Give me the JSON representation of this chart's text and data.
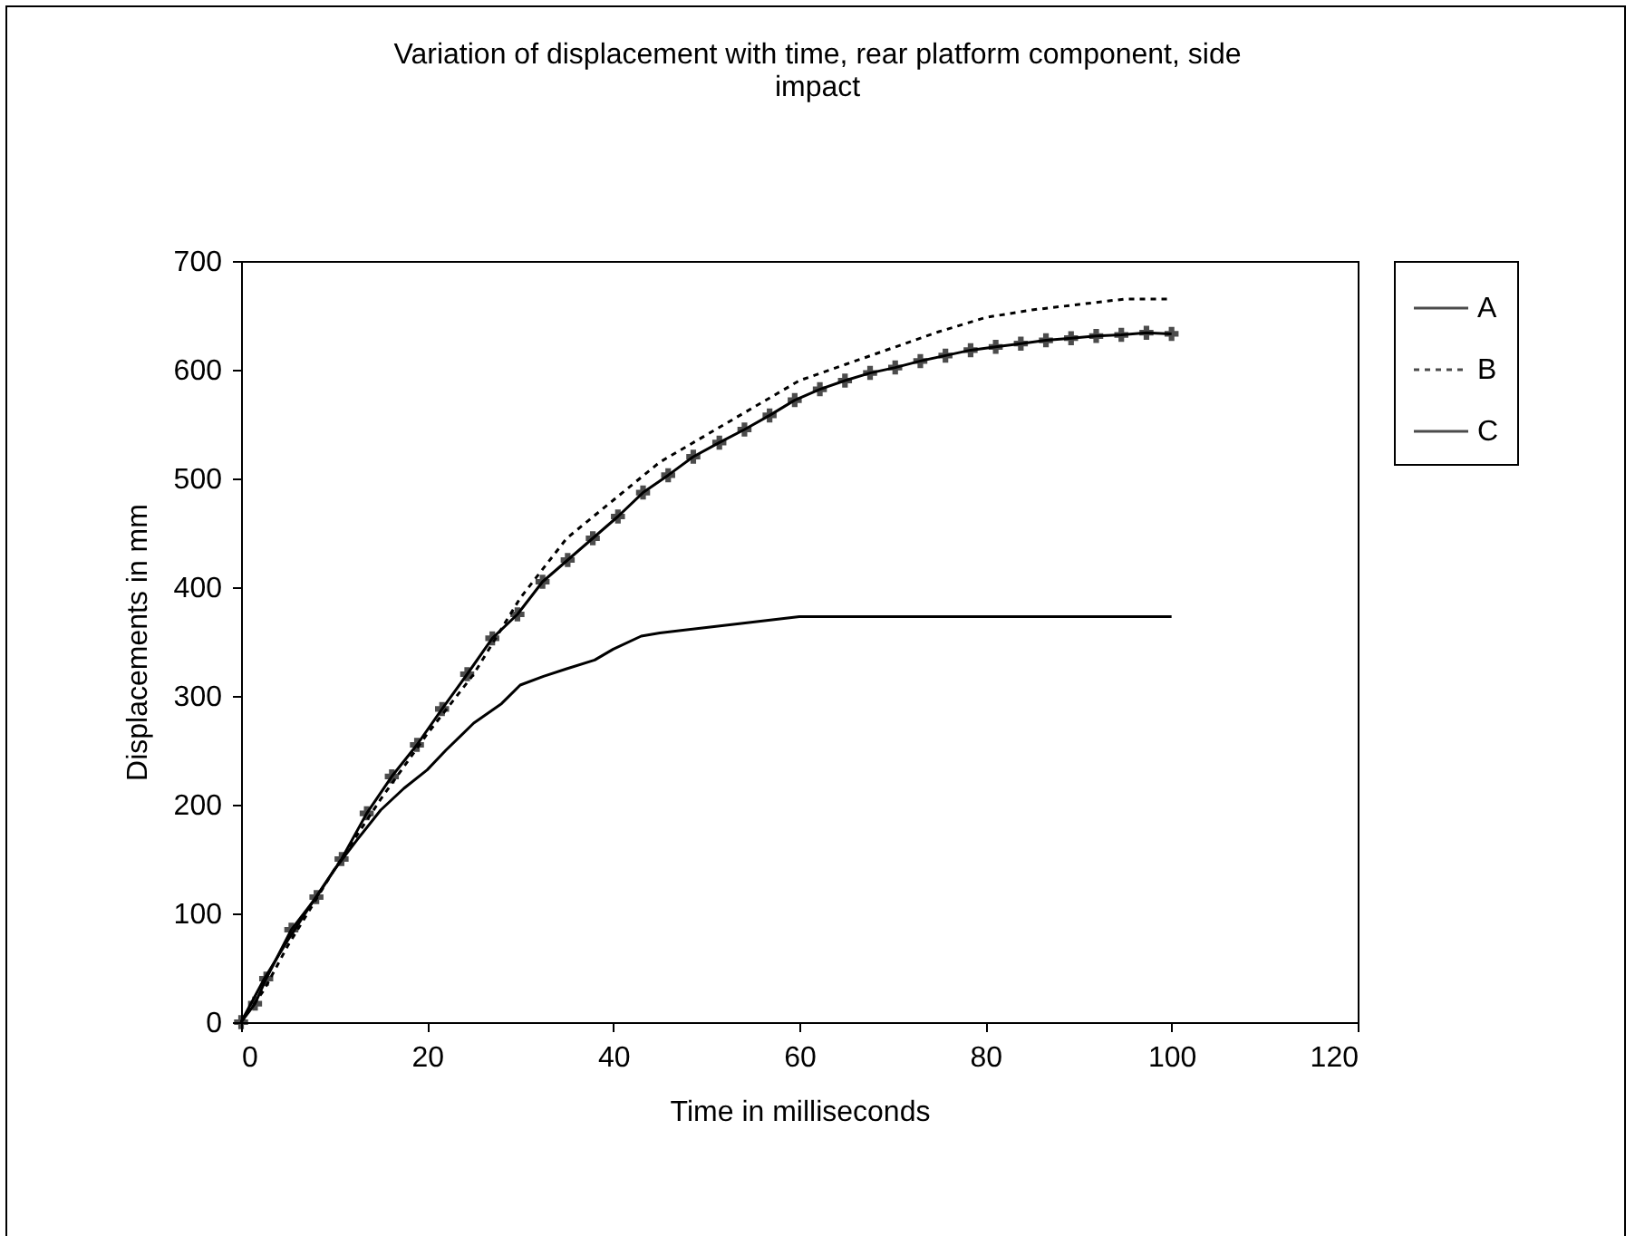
{
  "chart_data": {
    "type": "line",
    "title": "Variation of displacement with time, rear platform component, side impact",
    "xlabel": "Time in milliseconds",
    "ylabel": "Displacements in mm",
    "xlim": [
      0,
      120
    ],
    "xticks": [
      0,
      20,
      40,
      60,
      80,
      100,
      120
    ],
    "ylim": [
      0,
      700
    ],
    "yticks": [
      0,
      100,
      200,
      300,
      400,
      500,
      600,
      700
    ],
    "grid": false,
    "legend": "right",
    "series": [
      {
        "name": "A",
        "color": "#000000",
        "line_style": "solid",
        "marker": "none",
        "x": [
          0,
          2.5,
          5,
          7.5,
          10,
          12.5,
          15,
          17.5,
          20,
          22,
          25,
          28,
          30,
          32.5,
          35,
          38,
          40,
          43,
          45,
          50,
          55,
          60,
          100
        ],
        "values": [
          0,
          40,
          75,
          108,
          140,
          168,
          195,
          215,
          232,
          250,
          275,
          293,
          310,
          318,
          325,
          333,
          343,
          355,
          358,
          363,
          368,
          373,
          373
        ]
      },
      {
        "name": "B",
        "color": "#000000",
        "line_style": "dotted",
        "marker": "none",
        "x": [
          0,
          2.5,
          5,
          7.5,
          10,
          15,
          20,
          25,
          30,
          35,
          40,
          45,
          50,
          55,
          60,
          65,
          70,
          75,
          80,
          85,
          90,
          95,
          100
        ],
        "values": [
          0,
          30,
          70,
          105,
          140,
          205,
          265,
          320,
          390,
          445,
          480,
          515,
          540,
          565,
          590,
          605,
          620,
          635,
          648,
          655,
          660,
          665,
          665
        ]
      },
      {
        "name": "C",
        "color": "#000000",
        "line_style": "solid",
        "marker": "cross",
        "x": [
          0,
          1.5,
          2.7,
          5.4,
          8.1,
          10.8,
          13.5,
          16.2,
          18.9,
          21.6,
          24.3,
          27,
          29.7,
          32.4,
          35.1,
          37.8,
          40.5,
          43.2,
          45.9,
          48.6,
          51.4,
          54.1,
          56.8,
          59.5,
          62.2,
          64.9,
          67.6,
          70.3,
          73,
          75.7,
          78.4,
          81.1,
          83.8,
          86.5,
          89.2,
          91.9,
          94.6,
          97.3,
          100
        ],
        "values": [
          0,
          17,
          40,
          85,
          115,
          150,
          192,
          226,
          255,
          288,
          320,
          353,
          375,
          405,
          425,
          445,
          465,
          487,
          503,
          520,
          533,
          545,
          558,
          572,
          582,
          590,
          597,
          602,
          608,
          613,
          618,
          621,
          624,
          627,
          629,
          631,
          632,
          634,
          633
        ]
      }
    ]
  }
}
